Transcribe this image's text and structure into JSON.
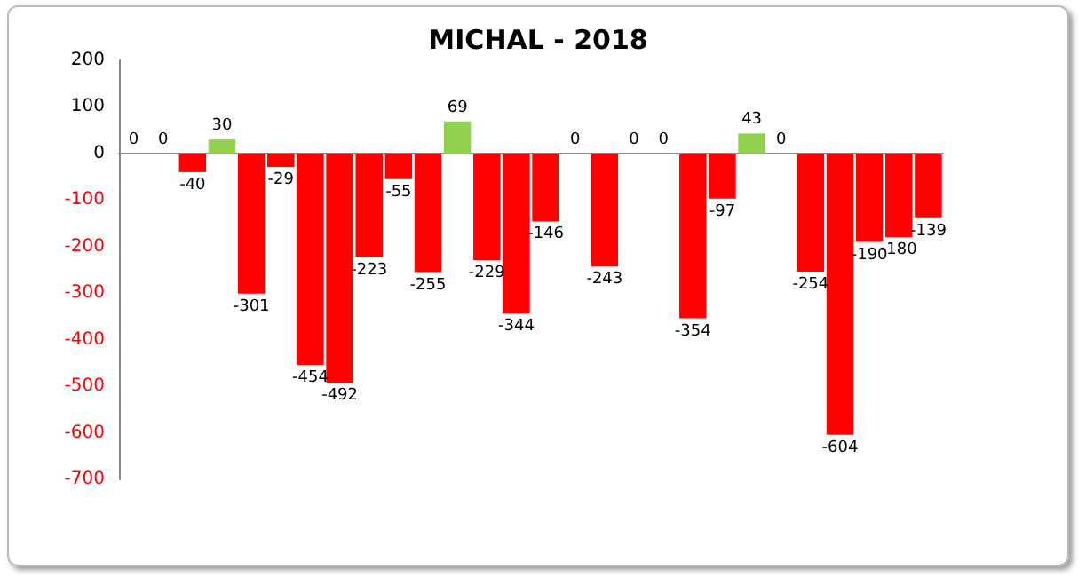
{
  "chart_data": {
    "type": "bar",
    "title": "MICHAL - 2018",
    "categories": [
      null,
      null,
      null,
      null,
      null,
      null,
      null,
      null,
      null,
      null,
      null,
      null,
      null,
      null,
      null,
      null,
      null,
      null,
      null,
      null,
      null,
      null,
      null,
      null,
      null,
      null,
      null,
      null
    ],
    "values": [
      0,
      0,
      -40,
      30,
      -301,
      -29,
      -454,
      -492,
      -223,
      -55,
      -255,
      69,
      -229,
      -344,
      -146,
      0,
      -243,
      0,
      0,
      -354,
      -97,
      43,
      0,
      -254,
      -604,
      -190,
      -180,
      -139
    ],
    "colors": [
      "#92d050",
      "#92d050",
      "#ff0000",
      "#92d050",
      "#ff0000",
      "#ff0000",
      "#ff0000",
      "#ff0000",
      "#ff0000",
      "#ff0000",
      "#ff0000",
      "#92d050",
      "#ff0000",
      "#ff0000",
      "#ff0000",
      "#92d050",
      "#ff0000",
      "#92d050",
      "#92d050",
      "#ff0000",
      "#ff0000",
      "#92d050",
      "#92d050",
      "#ff0000",
      "#ff0000",
      "#ff0000",
      "#ff0000",
      "#ff0000"
    ],
    "ylim": [
      -700,
      200
    ],
    "yticks": [
      -700,
      -600,
      -500,
      -400,
      -300,
      -200,
      -100,
      0,
      100,
      200
    ],
    "data_labels": true,
    "tick_labels": "y"
  }
}
